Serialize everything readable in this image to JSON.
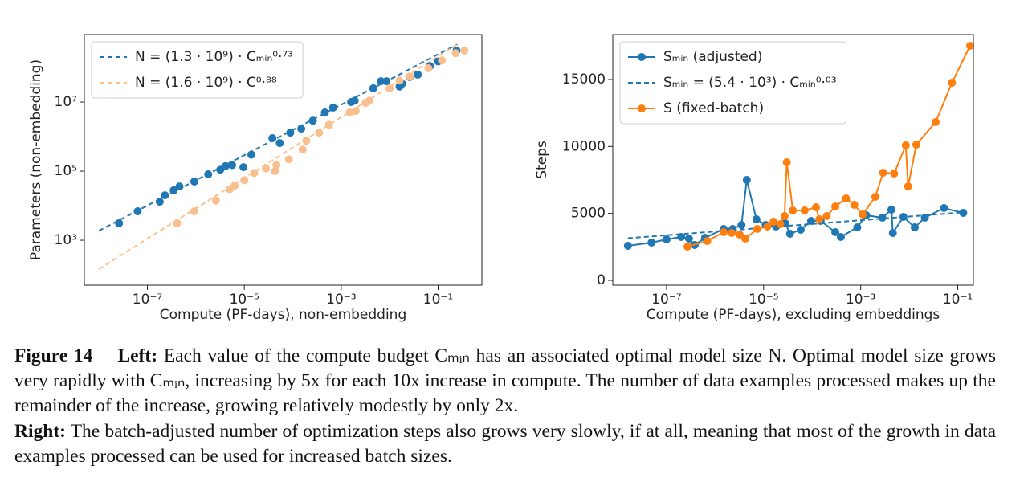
{
  "chart_data": [
    {
      "type": "scatter",
      "xlabel": "Compute (PF-days), non-embedding",
      "ylabel": "Parameters (non-embedding)",
      "xscale": "log",
      "yscale": "log",
      "xlim": [
        5e-09,
        0.8
      ],
      "ylim": [
        50,
        900000000.0
      ],
      "xticks": [
        {
          "value": 1e-07,
          "label": "10⁻⁷"
        },
        {
          "value": 1e-05,
          "label": "10⁻⁵"
        },
        {
          "value": 0.001,
          "label": "10⁻³"
        },
        {
          "value": 0.1,
          "label": "10⁻¹"
        }
      ],
      "yticks": [
        {
          "value": 1000,
          "label": "10³"
        },
        {
          "value": 100000,
          "label": "10⁵"
        },
        {
          "value": 10000000,
          "label": "10⁷"
        }
      ],
      "grid": false,
      "legend": "upper left",
      "series": [
        {
          "name": "N = (1.3 · 10⁹) · Cₘᵢₙ⁰·⁷³",
          "color": "#1f77b4",
          "style": "dashed",
          "x": [
            1e-08,
            0.25
          ],
          "values": [
            1880,
            470000000.0
          ]
        },
        {
          "name": "N = (1.6 · 10⁹) · C⁰·⁸⁸",
          "color": "#fbbf8a",
          "style": "dashed",
          "x": [
            1e-08,
            0.25
          ],
          "values": [
            146,
            470000000.0
          ]
        },
        {
          "color": "#1f77b4",
          "style": "markers",
          "x": [
            2.6e-08,
            6.3e-08,
            1.8e-07,
            2.3e-07,
            3.5e-07,
            4.6e-07,
            9.3e-07,
            1.8e-06,
            3.2e-06,
            4.1e-06,
            5.6e-06,
            9.6e-06,
            1.4e-05,
            3.8e-05,
            5.4e-05,
            8.9e-05,
            0.00015,
            0.00026,
            0.00046,
            0.00068,
            0.0016,
            0.0019,
            0.0046,
            0.0066,
            0.0086,
            0.016,
            0.018,
            0.026,
            0.038,
            0.068,
            0.1,
            0.24
          ],
          "values": [
            3100,
            6900,
            13000,
            20000,
            28000,
            36000,
            50000,
            81000,
            110000,
            140000,
            150000,
            130000,
            300000,
            900000,
            650000,
            1300000,
            1700000,
            2900000,
            5000000,
            6900000,
            10000000,
            11000000,
            25000000,
            40000000,
            40000000,
            28000000,
            34000000,
            53000000,
            62000000,
            110000000,
            150000000,
            310000000
          ]
        },
        {
          "color": "#f9c08f",
          "style": "markers",
          "x": [
            4.1e-07,
            9.3e-07,
            2.6e-06,
            5e-06,
            6.3e-06,
            1e-05,
            1.6e-05,
            2.8e-05,
            4.3e-05,
            4.6e-05,
            8.3e-05,
            0.00016,
            0.00019,
            0.00035,
            0.00056,
            0.0015,
            0.002,
            0.0032,
            0.0038,
            0.01,
            0.016,
            0.026,
            0.063,
            0.12,
            0.23,
            0.35
          ],
          "values": [
            3100,
            6900,
            14000,
            30000,
            38000,
            55000,
            89000,
            120000,
            100000,
            150000,
            220000,
            420000,
            760000,
            1300000,
            2200000,
            5000000,
            5500000,
            9500000,
            11000000,
            25000000,
            42000000,
            55000000,
            95000000,
            160000000,
            260000000,
            310000000
          ]
        }
      ]
    },
    {
      "type": "line",
      "xlabel": "Compute (PF-days), excluding embeddings",
      "ylabel": "Steps",
      "xscale": "log",
      "yscale": "linear",
      "xlim": [
        7.8e-09,
        0.21
      ],
      "ylim": [
        -360,
        18360
      ],
      "xticks": [
        {
          "value": 1e-07,
          "label": "10⁻⁷"
        },
        {
          "value": 1e-05,
          "label": "10⁻⁵"
        },
        {
          "value": 0.001,
          "label": "10⁻³"
        },
        {
          "value": 0.1,
          "label": "10⁻¹"
        }
      ],
      "yticks": [
        0,
        5000,
        10000,
        15000
      ],
      "grid": false,
      "legend": "upper left",
      "series": [
        {
          "name": "Sₘᵢₙ (adjusted)",
          "color": "#1f77b4",
          "style": "line-markers",
          "x": [
            1.6e-08,
            4.9e-08,
            1e-07,
            2e-07,
            2.9e-07,
            3.8e-07,
            6.2e-07,
            1.5e-06,
            2.3e-06,
            3.5e-06,
            4.5e-06,
            7.1e-06,
            1.1e-05,
            1.8e-05,
            2.8e-05,
            3.5e-05,
            5.8e-05,
            9.5e-05,
            0.00015,
            0.0003,
            0.00039,
            0.00085,
            0.0013,
            0.0028,
            0.0043,
            0.0046,
            0.0076,
            0.013,
            0.021,
            0.052,
            0.13
          ],
          "values": [
            2580,
            2820,
            3060,
            3240,
            3120,
            2640,
            3180,
            3840,
            3840,
            4140,
            7500,
            4560,
            4140,
            4020,
            4260,
            3480,
            3780,
            4440,
            4440,
            3600,
            3240,
            3960,
            4860,
            4680,
            5280,
            3540,
            4740,
            3960,
            4680,
            5400,
            5040
          ]
        },
        {
          "name": "Sₘᵢₙ = (5.4 · 10³) · Cₘᵢₙ⁰·⁰³",
          "color": "#1f77b4",
          "style": "dashed",
          "x": [
            1.6e-08,
            0.13
          ],
          "values": [
            3150,
            5080
          ]
        },
        {
          "name": "S (fixed-batch)",
          "color": "#ff7f0e",
          "style": "line-markers",
          "x": [
            2.7e-07,
            6.9e-07,
            1.5e-06,
            2.2e-06,
            3.2e-06,
            4.2e-06,
            7.4e-06,
            1.2e-05,
            1.6e-05,
            2.2e-05,
            2.7e-05,
            3e-05,
            4e-05,
            7e-05,
            0.00012,
            0.00014,
            0.0002,
            0.0003,
            0.0005,
            0.00074,
            0.0011,
            0.002,
            0.0029,
            0.0049,
            0.0085,
            0.0095,
            0.014,
            0.035,
            0.076,
            0.18
          ],
          "values": [
            2520,
            2940,
            3600,
            3540,
            3420,
            3120,
            3840,
            4020,
            4380,
            4200,
            4800,
            8820,
            5220,
            5220,
            5460,
            4560,
            4800,
            5520,
            6120,
            5640,
            4920,
            6240,
            8040,
            7980,
            10080,
            7020,
            10140,
            11820,
            14760,
            17520
          ]
        }
      ]
    }
  ],
  "caption": {
    "label": "Figure 14",
    "left_heading": "Left:",
    "left_text": "Each value of the compute budget Cₘᵢₙ has an associated optimal model size N. Optimal model size grows very rapidly with Cₘᵢₙ, increasing by 5x for each 10x increase in compute. The number of data examples processed makes up the remainder of the increase, growing relatively modestly by only 2x.",
    "right_heading": "Right:",
    "right_text": "The batch-adjusted number of optimization steps also grows very slowly, if at all, meaning that most of the growth in data examples processed can be used for increased batch sizes."
  }
}
